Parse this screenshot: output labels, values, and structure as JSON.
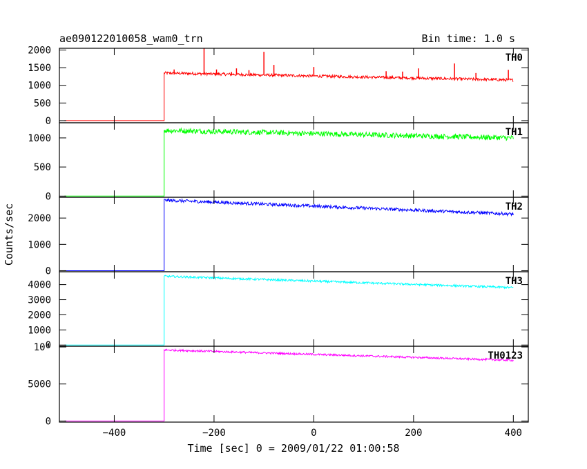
{
  "header": {
    "left_title": "ae090122010058_wam0_trn",
    "right_title": "Bin time: 1.0 s"
  },
  "chart_data": {
    "type": "line",
    "xlabel": "Time [sec] 0 = 2009/01/22 01:00:58",
    "ylabel": "Counts/sec",
    "xlim": [
      -510,
      430
    ],
    "x_ticks": [
      -400,
      -200,
      0,
      200,
      400
    ],
    "x_tick_labels": [
      "−400",
      "−200",
      "0",
      "200",
      "400"
    ],
    "grid": false,
    "panels": [
      {
        "label": "TH0",
        "color": "#ff0000",
        "ylim": [
          -60,
          2050
        ],
        "y_ticks": [
          0,
          500,
          1000,
          1500,
          2000
        ],
        "y_tick_labels": [
          "0",
          "500",
          "1000",
          "1500",
          "2000"
        ],
        "pre_level": 0,
        "onset_time": -300,
        "peak": 1350,
        "end_level": 1150,
        "noise": 40,
        "spikes": [
          [
            -220,
            2050
          ],
          [
            -100,
            1950
          ],
          [
            -80,
            1580
          ],
          [
            -195,
            1450
          ],
          [
            -155,
            1480
          ],
          [
            -130,
            1430
          ],
          [
            -165,
            1380
          ],
          [
            0,
            1520
          ],
          [
            -280,
            1450
          ],
          [
            145,
            1400
          ],
          [
            178,
            1390
          ],
          [
            210,
            1480
          ],
          [
            282,
            1620
          ],
          [
            325,
            1350
          ],
          [
            390,
            1440
          ]
        ]
      },
      {
        "label": "TH1",
        "color": "#00ff00",
        "ylim": [
          -20,
          1260
        ],
        "y_ticks": [
          0,
          500,
          1000
        ],
        "y_tick_labels": [
          "0",
          "500",
          "1000"
        ],
        "pre_level": 0,
        "onset_time": -300,
        "peak": 1130,
        "end_level": 1000,
        "noise": 45,
        "spikes": []
      },
      {
        "label": "TH2",
        "color": "#0000ff",
        "ylim": [
          -40,
          2790
        ],
        "y_ticks": [
          0,
          1000,
          2000
        ],
        "y_tick_labels": [
          "0",
          "1000",
          "2000"
        ],
        "pre_level": 0,
        "onset_time": -300,
        "peak": 2680,
        "end_level": 2150,
        "noise": 60,
        "spikes": []
      },
      {
        "label": "TH3",
        "color": "#00ffff",
        "ylim": [
          -80,
          4850
        ],
        "y_ticks": [
          0,
          1000,
          2000,
          3000,
          4000
        ],
        "y_tick_labels": [
          "0",
          "1000",
          "2000",
          "3000",
          "4000"
        ],
        "pre_level": 0,
        "onset_time": -300,
        "peak": 4550,
        "end_level": 3800,
        "noise": 70,
        "spikes": []
      },
      {
        "label": "TH0123",
        "color": "#ff00ff",
        "ylim": [
          -150,
          10100
        ],
        "y_ticks": [
          0,
          5000,
          10000
        ],
        "y_tick_labels": [
          "0",
          "5000",
          "10⁴"
        ],
        "pre_level": 0,
        "onset_time": -300,
        "peak": 9600,
        "end_level": 8200,
        "noise": 130,
        "spikes": []
      }
    ]
  }
}
